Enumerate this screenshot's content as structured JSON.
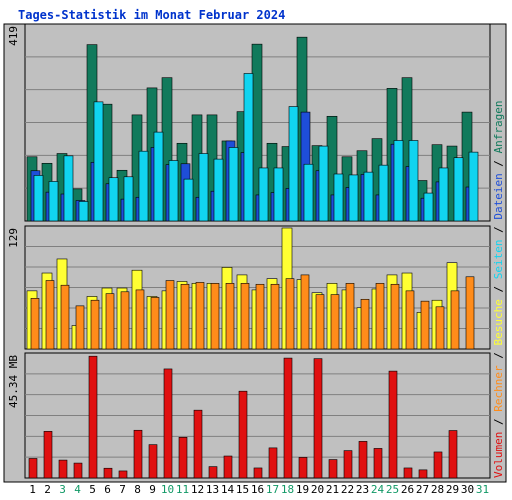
{
  "colors": {
    "title": "#0033cc",
    "frame_bg": "#c0c0c0",
    "anfragen": "#117a5c",
    "dateien": "#1e4ed8",
    "seiten": "#11d4f0",
    "besuche": "#ffff33",
    "rechner": "#ff8c1a",
    "volumen": "#e01010",
    "weekend_day": "#119966",
    "weekday_day": "#000000",
    "legend_sep": "#000000"
  },
  "chart_data": {
    "type": "bar",
    "title": "Tages-Statistik im Monat Februar 2024",
    "categories": [
      "1",
      "2",
      "3",
      "4",
      "5",
      "6",
      "7",
      "8",
      "9",
      "10",
      "11",
      "12",
      "13",
      "14",
      "15",
      "16",
      "17",
      "18",
      "19",
      "20",
      "21",
      "22",
      "23",
      "24",
      "25",
      "26",
      "27",
      "28",
      "29",
      "30",
      "31"
    ],
    "weekend_days": [
      "3",
      "4",
      "10",
      "11",
      "17",
      "18",
      "24",
      "25",
      "31"
    ],
    "panels": [
      {
        "name": "requests",
        "ymax_label": "419",
        "ylim": [
          0,
          419
        ],
        "series": [
          {
            "name": "Anfragen",
            "values": [
              138,
              124,
              145,
              69,
              379,
              251,
              109,
              228,
              286,
              308,
              167,
              228,
              228,
              172,
              235,
              380,
              167,
              160,
              395,
              162,
              225,
              138,
              151,
              177,
              285,
              308,
              87,
              164,
              161,
              234,
              0
            ]
          },
          {
            "name": "Dateien",
            "values": [
              108,
              62,
              58,
              44,
              126,
              80,
              47,
              51,
              158,
              121,
              123,
              51,
              64,
              172,
              147,
              56,
              61,
              70,
              234,
              108,
              56,
              72,
              100,
              56,
              165,
              117,
              49,
              84,
              0,
              73,
              0
            ]
          },
          {
            "name": "Seiten",
            "values": [
              98,
              85,
              140,
              42,
              256,
              93,
              95,
              150,
              191,
              130,
              90,
              145,
              133,
              158,
              317,
              114,
              114,
              246,
              122,
              161,
              101,
              99,
              105,
              120,
              173,
              173,
              60,
              114,
              136,
              148,
              0
            ]
          }
        ]
      },
      {
        "name": "visits",
        "ymax_label": "129",
        "ylim": [
          0,
          129
        ],
        "series": [
          {
            "name": "Besuche",
            "values": [
              62,
              81,
              96,
              25,
              56,
              65,
              65,
              84,
              56,
              62,
              72,
              70,
              70,
              87,
              79,
              63,
              75,
              129,
              74,
              60,
              70,
              63,
              44,
              64,
              79,
              81,
              39,
              52,
              92,
              0,
              0
            ]
          },
          {
            "name": "Rechner",
            "values": [
              54,
              73,
              68,
              46,
              52,
              59,
              61,
              63,
              55,
              73,
              69,
              71,
              70,
              70,
              70,
              69,
              69,
              75,
              79,
              58,
              58,
              70,
              53,
              70,
              69,
              62,
              51,
              45,
              62,
              77,
              0
            ]
          }
        ]
      },
      {
        "name": "volume",
        "ymax_label": "45.34 MB",
        "ylim": [
          0,
          45.34
        ],
        "series": [
          {
            "name": "Volumen",
            "values": [
              7.2,
              17.2,
              6.6,
              5.5,
              44.9,
              3.6,
              2.6,
              17.6,
              12.3,
              40.2,
              15.0,
              25.0,
              4.2,
              8.1,
              32.0,
              3.7,
              11.1,
              44.2,
              7.6,
              44.0,
              6.8,
              10.1,
              13.5,
              10.9,
              39.4,
              3.7,
              3.0,
              9.6,
              17.5,
              0,
              0
            ]
          }
        ]
      }
    ],
    "legend": [
      "Volumen",
      "Rechner",
      "Besuche",
      "Seiten",
      "Dateien",
      "Anfragen"
    ],
    "legend_separator": " / ",
    "legend_placement": "right, vertical",
    "grid": true
  }
}
